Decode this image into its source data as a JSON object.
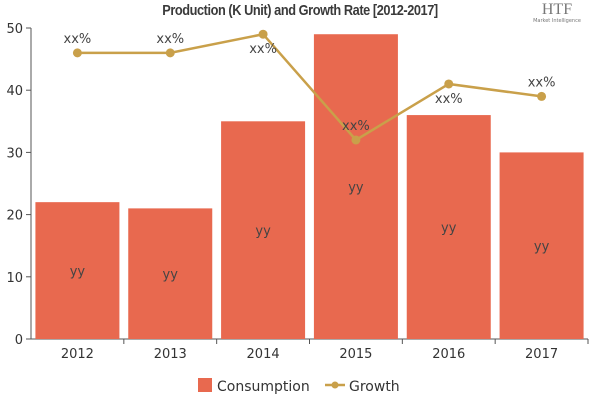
{
  "chart_data": {
    "type": "bar+line",
    "title": "Production (K Unit) and Growth Rate [2012-2017]",
    "categories": [
      "2012",
      "2013",
      "2014",
      "2015",
      "2016",
      "2017"
    ],
    "series": [
      {
        "name": "Consumption",
        "type": "bar",
        "color": "#e8694f",
        "values": [
          22,
          21,
          35,
          49,
          36,
          30
        ],
        "labels": [
          "yy",
          "yy",
          "yy",
          "yy",
          "yy",
          "yy"
        ]
      },
      {
        "name": "Growth",
        "type": "line",
        "color": "#c9a04a",
        "values": [
          46,
          46,
          49,
          32,
          41,
          39
        ],
        "labels": [
          "xx%",
          "xx%",
          "xx%",
          "xx%",
          "xx%",
          "xx%"
        ]
      }
    ],
    "ylim": [
      0,
      50
    ],
    "yticks": [
      0,
      10,
      20,
      30,
      40,
      50
    ],
    "grid": false,
    "legend": "bottom"
  },
  "logo": {
    "text": "HTF",
    "subtext": "Market Intelligence"
  }
}
